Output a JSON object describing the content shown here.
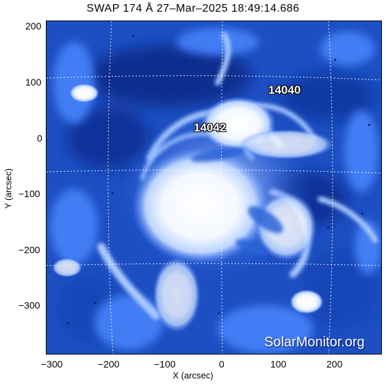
{
  "title": "SWAP 174 Å 27–Mar–2025 18:49:14.686",
  "axes": {
    "xlabel": "X (arcsec)",
    "ylabel": "Y (arcsec)",
    "xticks": [
      "−300",
      "−200",
      "−100",
      "0",
      "100",
      "200"
    ],
    "yticks": [
      "200",
      "100",
      "0",
      "−100",
      "−200",
      "−300"
    ]
  },
  "regions": [
    "14040",
    "14042"
  ],
  "watermark": "SolarMonitor.org",
  "colors": {
    "background_blue": "#1a48b8",
    "dark_blue": "#0a2a86",
    "mid_blue": "#3f7cff",
    "light_blue": "#9ac0ff",
    "bright_core": "#ffffff",
    "grid_dots": "#ffffff"
  }
}
